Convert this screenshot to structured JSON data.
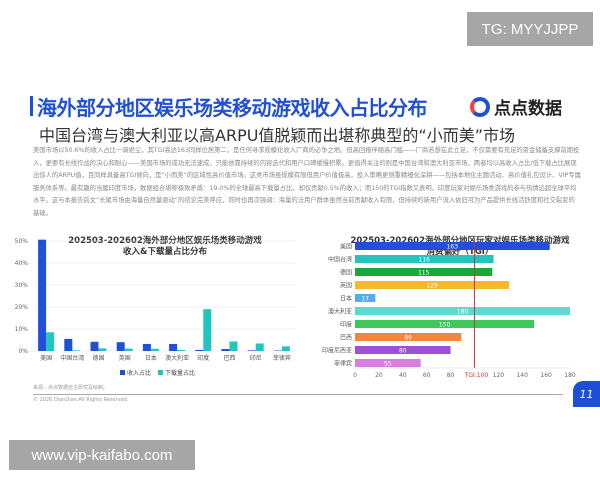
{
  "overlays": {
    "tg": "TG: MYYJJPP",
    "site": "www.vip-kaifabo.com"
  },
  "header": {
    "title": "海外部分地区娱乐场类移动游戏收入占比分布",
    "subtitle": "中国台湾与澳大利亚以高ARPU值脱颖而出堪称典型的“小而美”市场",
    "logo": "点点数据"
  },
  "body_text": "美国市场以50.6%的收入占比一骑绝尘，其TGI高达163同样位居第二，是任何寻求规模化收入厂商的必争之地。但高回报伴随高门槛——厂商若想在此立足，不仅需要有充足的资金储备支撑前期投入，更要有长线作战的决心和耐心——美国市场的成功无法速成，只能依靠持续的内容迭代和用户口碑缓慢积累。更值得关注的则是中国台湾和澳大利亚市场，两者均以高收入占比/低下载占比展现出惊人的ARPU值，且同样具备高TGI倾向，是“小而美”的区域性高价值市场。这类市场虽规模有限但用户价值极高，投入策略更侧重精细化深耕——包括本地化主题活动、高价值礼包设计、VIP专属服务体系等。最有趣的当属印度市场，数据组合堪称极致矛盾：19.0%的全球最高下载量占比，却仅贡献0.5%的收入；而150的TGI指数又表明，印度玩家对娱乐场类游戏的参与热情远超全球平均水平。这与本报告前文“长尾市场由海量自然量驱动”的结论完美呼应，同时也再次强调：海量的泛用户群体虽然当前贡献收入有限，但持续的新用户流入依旧可为产品提供长线活跃度和社交裂变的基础。",
  "footer": {
    "source": "来源：点点数据自主研究及绘制。",
    "copyright": "© 2026 DianDian.All Rights Reserved.",
    "page": "11"
  },
  "chart_data": [
    {
      "type": "bar",
      "title_line1": "202503-202602海外部分地区娱乐场类移动游戏",
      "title_line2": "收入&下载量占比分布",
      "categories": [
        "美国",
        "中国台湾",
        "德国",
        "英国",
        "日本",
        "澳大利亚",
        "印度",
        "巴西",
        "印尼",
        "菲律宾"
      ],
      "series": [
        {
          "name": "收入占比",
          "color": "#2150d8",
          "values": [
            50.6,
            5.5,
            4.2,
            4.0,
            3.2,
            3.2,
            0.5,
            0.9,
            0.3,
            0.2
          ]
        },
        {
          "name": "下载量占比",
          "color": "#22c4bf",
          "values": [
            8.5,
            0.3,
            1.2,
            1.1,
            1.0,
            0.5,
            19.0,
            4.3,
            3.4,
            2.1
          ]
        }
      ],
      "ylim": [
        0,
        50
      ],
      "yticks": [
        "0%",
        "10%",
        "20%",
        "30%",
        "40%",
        "50%"
      ],
      "grid": true,
      "legend": "bottom"
    },
    {
      "type": "bar",
      "orientation": "horizontal",
      "title_line1": "202503-202602海外部分地区玩家对娱乐场类移动游戏",
      "title_line2": "消费偏好（TGI）",
      "categories": [
        "美国",
        "中国台湾",
        "德国",
        "英国",
        "日本",
        "澳大利亚",
        "印度",
        "巴西",
        "印度尼西亚",
        "菲律宾"
      ],
      "values": [
        163,
        116,
        115,
        129,
        17,
        180,
        150,
        89,
        80,
        55
      ],
      "colors": [
        "#2150d8",
        "#22c4bf",
        "#19a83a",
        "#f5b82e",
        "#5aa8f0",
        "#5fd8cf",
        "#3ec85a",
        "#f5853a",
        "#a050d8",
        "#d77ee0"
      ],
      "xlim": [
        0,
        180
      ],
      "xticks": [
        0,
        20,
        40,
        60,
        80,
        120,
        140,
        160,
        180
      ],
      "reference": {
        "value": 100,
        "label": "TGI:100",
        "color": "#c0392b"
      }
    }
  ]
}
